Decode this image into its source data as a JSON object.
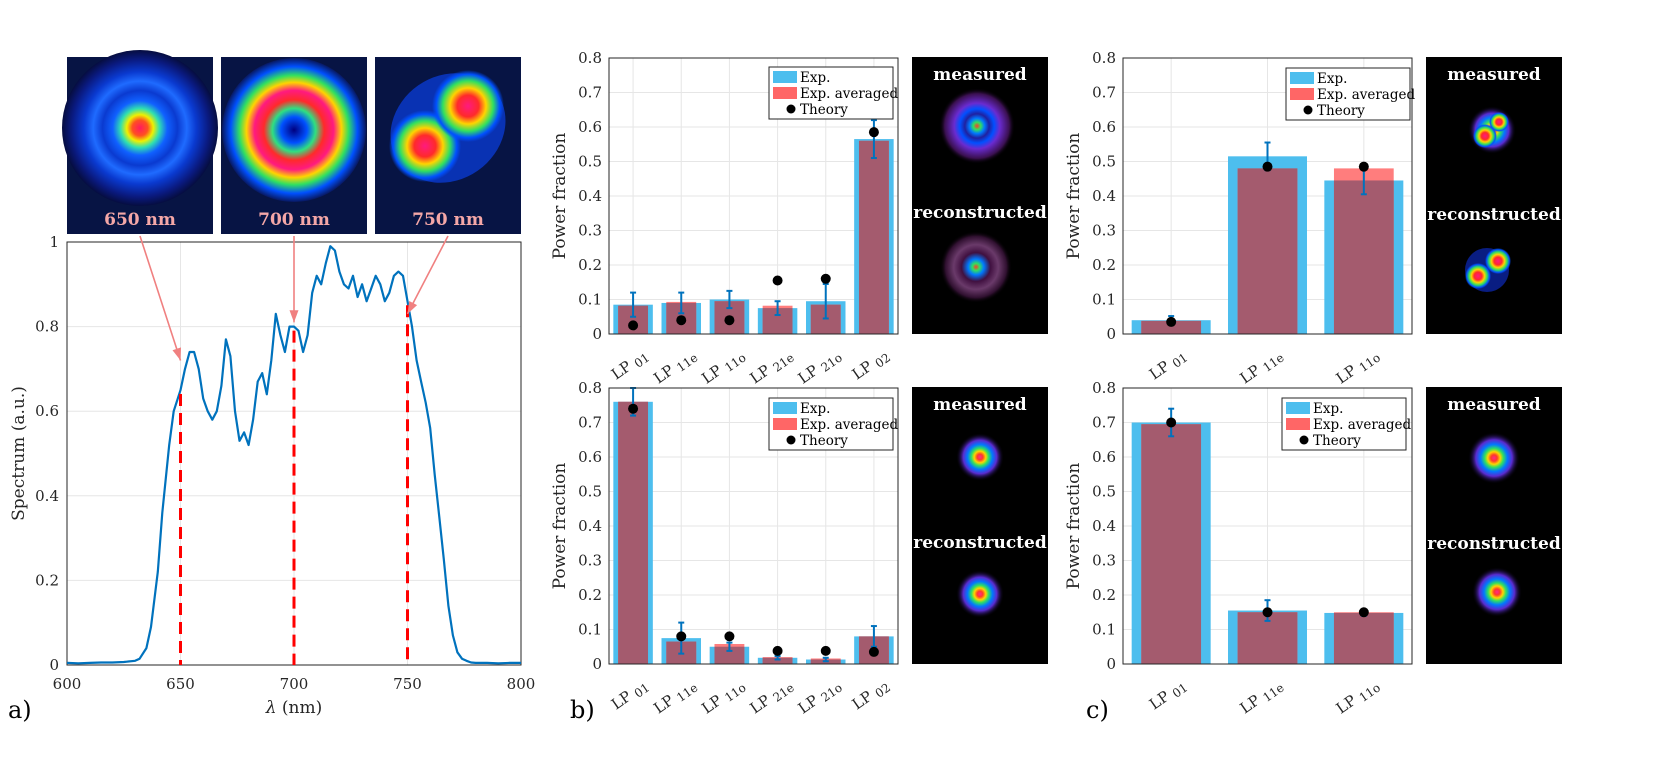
{
  "colors": {
    "line": "#0072BD",
    "exp": "#4DBEEE",
    "avg": "#FF6666",
    "overlap": "#A45B6E",
    "theory": "#000000",
    "marker": "#FF0000",
    "arrow": "#F08080",
    "wl_text": "#F4A7A7"
  },
  "chart_data": [
    {
      "id": "a",
      "type": "line",
      "panel_label": "a)",
      "xlabel_sym": "λ",
      "xlabel_unit": " (nm)",
      "ylabel": "Spectrum (a.u.)",
      "xlim": [
        600,
        800
      ],
      "ylim": [
        0,
        1
      ],
      "xticks": [
        600,
        650,
        700,
        750,
        800
      ],
      "yticks": [
        0,
        0.2,
        0.4,
        0.6,
        0.8,
        1
      ],
      "x": [
        600,
        605,
        610,
        615,
        620,
        625,
        630,
        632,
        635,
        637,
        640,
        642,
        645,
        647,
        650,
        652,
        654,
        656,
        658,
        660,
        662,
        664,
        666,
        668,
        670,
        672,
        674,
        676,
        678,
        680,
        682,
        684,
        686,
        688,
        690,
        692,
        694,
        696,
        698,
        700,
        702,
        704,
        706,
        708,
        710,
        712,
        714,
        716,
        718,
        720,
        722,
        724,
        726,
        728,
        730,
        732,
        734,
        736,
        738,
        740,
        742,
        744,
        746,
        748,
        750,
        752,
        754,
        756,
        758,
        760,
        762,
        764,
        766,
        768,
        770,
        772,
        774,
        776,
        778,
        780,
        785,
        790,
        795,
        800
      ],
      "y": [
        0.005,
        0.004,
        0.005,
        0.006,
        0.006,
        0.007,
        0.01,
        0.015,
        0.04,
        0.09,
        0.22,
        0.36,
        0.52,
        0.6,
        0.65,
        0.7,
        0.74,
        0.74,
        0.7,
        0.63,
        0.6,
        0.58,
        0.6,
        0.66,
        0.77,
        0.73,
        0.6,
        0.53,
        0.55,
        0.52,
        0.58,
        0.67,
        0.69,
        0.64,
        0.72,
        0.83,
        0.78,
        0.74,
        0.8,
        0.8,
        0.79,
        0.74,
        0.78,
        0.88,
        0.92,
        0.9,
        0.95,
        0.99,
        0.98,
        0.93,
        0.9,
        0.89,
        0.92,
        0.87,
        0.9,
        0.86,
        0.89,
        0.92,
        0.9,
        0.86,
        0.88,
        0.92,
        0.93,
        0.92,
        0.86,
        0.8,
        0.72,
        0.67,
        0.62,
        0.56,
        0.45,
        0.35,
        0.25,
        0.14,
        0.07,
        0.03,
        0.015,
        0.01,
        0.006,
        0.005,
        0.005,
        0.004,
        0.005,
        0.005
      ],
      "marker_lines": [
        650,
        700,
        750
      ],
      "wavelength_images": [
        {
          "label": "650 nm",
          "target_x": 650,
          "target_y": 0.72
        },
        {
          "label": "700 nm",
          "target_x": 700,
          "target_y": 0.81
        },
        {
          "label": "750 nm",
          "target_x": 750,
          "target_y": 0.83
        }
      ]
    },
    {
      "id": "b-top",
      "type": "bar",
      "panel_label": "",
      "ylabel": "Power fraction",
      "ylim": [
        0,
        0.8
      ],
      "yticks": [
        0,
        0.1,
        0.2,
        0.3,
        0.4,
        0.5,
        0.6,
        0.7,
        0.8
      ],
      "categories": [
        [
          "LP",
          "01"
        ],
        [
          "LP",
          "11e"
        ],
        [
          "LP",
          "11o"
        ],
        [
          "LP",
          "21e"
        ],
        [
          "LP",
          "21o"
        ],
        [
          "LP",
          "02"
        ]
      ],
      "series": [
        {
          "name": "Exp.",
          "values": [
            0.085,
            0.09,
            0.1,
            0.075,
            0.095,
            0.565
          ],
          "errors": [
            0.035,
            0.03,
            0.025,
            0.02,
            0.05,
            0.055
          ]
        },
        {
          "name": "Exp. averaged",
          "values": [
            0.082,
            0.093,
            0.095,
            0.082,
            0.085,
            0.56
          ]
        },
        {
          "name": "Theory",
          "values": [
            0.025,
            0.04,
            0.04,
            0.155,
            0.16,
            0.585
          ]
        }
      ],
      "image_labels": [
        "measured",
        "reconstructed"
      ]
    },
    {
      "id": "b-bottom",
      "type": "bar",
      "panel_label": "b)",
      "ylabel": "Power fraction",
      "ylim": [
        0,
        0.8
      ],
      "yticks": [
        0,
        0.1,
        0.2,
        0.3,
        0.4,
        0.5,
        0.6,
        0.7,
        0.8
      ],
      "categories": [
        [
          "LP",
          "01"
        ],
        [
          "LP",
          "11e"
        ],
        [
          "LP",
          "11o"
        ],
        [
          "LP",
          "21e"
        ],
        [
          "LP",
          "21o"
        ],
        [
          "LP",
          "02"
        ]
      ],
      "series": [
        {
          "name": "Exp.",
          "values": [
            0.76,
            0.075,
            0.05,
            0.018,
            0.013,
            0.08
          ],
          "errors": [
            0.04,
            0.045,
            0.012,
            0.005,
            0.005,
            0.03
          ]
        },
        {
          "name": "Exp. averaged",
          "values": [
            0.76,
            0.065,
            0.058,
            0.02,
            0.016,
            0.08
          ]
        },
        {
          "name": "Theory",
          "values": [
            0.74,
            0.08,
            0.08,
            0.038,
            0.038,
            0.035
          ]
        }
      ],
      "image_labels": [
        "measured",
        "reconstructed"
      ]
    },
    {
      "id": "c-top",
      "type": "bar",
      "panel_label": "",
      "ylabel": "Power fraction",
      "ylim": [
        0,
        0.8
      ],
      "yticks": [
        0,
        0.1,
        0.2,
        0.3,
        0.4,
        0.5,
        0.6,
        0.7,
        0.8
      ],
      "categories": [
        [
          "LP",
          "01"
        ],
        [
          "LP",
          "11e"
        ],
        [
          "LP",
          "11o"
        ]
      ],
      "series": [
        {
          "name": "Exp.",
          "values": [
            0.04,
            0.515,
            0.445
          ],
          "errors": [
            0.012,
            0.04,
            0.04
          ]
        },
        {
          "name": "Exp. averaged",
          "values": [
            0.038,
            0.48,
            0.48
          ]
        },
        {
          "name": "Theory",
          "values": [
            0.035,
            0.485,
            0.485
          ]
        }
      ],
      "image_labels": [
        "measured",
        "reconstructed"
      ]
    },
    {
      "id": "c-bottom",
      "type": "bar",
      "panel_label": "c)",
      "ylabel": "Power fraction",
      "ylim": [
        0,
        0.8
      ],
      "yticks": [
        0,
        0.1,
        0.2,
        0.3,
        0.4,
        0.5,
        0.6,
        0.7,
        0.8
      ],
      "categories": [
        [
          "LP",
          "01"
        ],
        [
          "LP",
          "11e"
        ],
        [
          "LP",
          "11o"
        ]
      ],
      "series": [
        {
          "name": "Exp.",
          "values": [
            0.7,
            0.155,
            0.148
          ],
          "errors": [
            0.04,
            0.03,
            0.008
          ]
        },
        {
          "name": "Exp. averaged",
          "values": [
            0.695,
            0.15,
            0.15
          ]
        },
        {
          "name": "Theory",
          "values": [
            0.7,
            0.15,
            0.15
          ]
        }
      ],
      "image_labels": [
        "measured",
        "reconstructed"
      ]
    }
  ]
}
